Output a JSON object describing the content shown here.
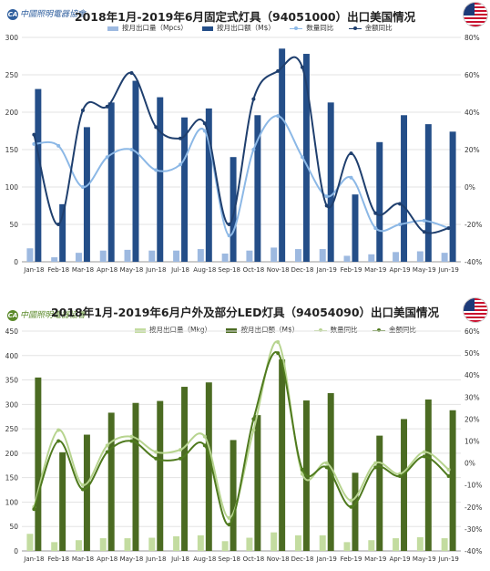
{
  "chart_data": [
    {
      "type": "bar",
      "title": "2018年1月-2019年6月固定式灯具（94051000）出口美国情况",
      "logo_text": "中國照明電器協會",
      "categories": [
        "Jan-18",
        "Feb-18",
        "Mar-18",
        "Apr-18",
        "May-18",
        "Jun-18",
        "Jul-18",
        "Aug-18",
        "Sep-18",
        "Oct-18",
        "Nov-18",
        "Dec-18",
        "Jan-19",
        "Feb-19",
        "Mar-19",
        "Apr-19",
        "May-19",
        "Jun-19"
      ],
      "y_left": {
        "min": 0,
        "max": 300,
        "ticks": [
          0,
          50,
          100,
          150,
          200,
          250,
          300
        ]
      },
      "y_right": {
        "min": -40,
        "max": 80,
        "ticks": [
          -40,
          -20,
          0,
          20,
          40,
          60,
          80
        ],
        "tick_labels": [
          "-40%",
          "-20%",
          "0%",
          "20%",
          "40%",
          "60%",
          "80%"
        ]
      },
      "series": [
        {
          "name": "按月出口量（Mpcs）",
          "type": "bar",
          "axis": "left",
          "color": "#9db9e0",
          "values": [
            18,
            6,
            12,
            15,
            16,
            15,
            15,
            17,
            11,
            15,
            19,
            17,
            17,
            8,
            10,
            13,
            14,
            12
          ]
        },
        {
          "name": "按月出口额（M$）",
          "type": "bar",
          "axis": "left",
          "color": "#244e88",
          "values": [
            231,
            77,
            180,
            213,
            242,
            220,
            193,
            205,
            140,
            196,
            285,
            278,
            213,
            90,
            160,
            196,
            184,
            174
          ]
        },
        {
          "name": "数量同比",
          "type": "line",
          "axis": "right",
          "color": "#8cb8e6",
          "values": [
            23,
            22,
            0,
            16,
            20,
            9,
            12,
            30,
            -26,
            20,
            38,
            16,
            -5,
            5,
            -22,
            -20,
            -18,
            -22
          ]
        },
        {
          "name": "金额同比",
          "type": "line",
          "axis": "right",
          "color": "#1f3f6e",
          "values": [
            28,
            -20,
            41,
            43,
            61,
            32,
            26,
            34,
            -20,
            47,
            62,
            64,
            -10,
            18,
            -14,
            -9,
            -24,
            -22
          ]
        }
      ],
      "grid": true,
      "legend_position": "top"
    },
    {
      "type": "bar",
      "title": "2018年1月-2019年6月户外及部分LED灯具（94054090）出口美国情况",
      "logo_text": "中國照明電器協會",
      "categories": [
        "Jan-18",
        "Feb-18",
        "Mar-18",
        "Apr-18",
        "May-18",
        "Jun-18",
        "Jul-18",
        "Aug-18",
        "Sep-18",
        "Oct-18",
        "Nov-18",
        "Dec-18",
        "Jan-19",
        "Feb-19",
        "Mar-19",
        "Apr-19",
        "May-19",
        "Jun-19"
      ],
      "y_left": {
        "min": 0,
        "max": 450,
        "ticks": [
          0,
          50,
          100,
          150,
          200,
          250,
          300,
          350,
          400,
          450
        ]
      },
      "y_right": {
        "min": -40,
        "max": 60,
        "ticks": [
          -40,
          -30,
          -20,
          -10,
          0,
          10,
          20,
          30,
          40,
          50,
          60
        ],
        "tick_labels": [
          "-40%",
          "-30%",
          "-20%",
          "-10%",
          "0%",
          "10%",
          "20%",
          "30%",
          "40%",
          "50%",
          "60%"
        ]
      },
      "series": [
        {
          "name": "按月出口量（Mkg）",
          "type": "bar",
          "axis": "left",
          "color": "#c3dca0",
          "values": [
            35,
            18,
            22,
            26,
            26,
            27,
            30,
            32,
            20,
            27,
            38,
            32,
            32,
            18,
            22,
            26,
            28,
            26
          ]
        },
        {
          "name": "按月出口额（M$）",
          "type": "bar",
          "axis": "left",
          "color": "#4b6b22",
          "values": [
            355,
            202,
            238,
            283,
            303,
            307,
            336,
            345,
            227,
            278,
            392,
            308,
            323,
            160,
            236,
            270,
            310,
            288
          ]
        },
        {
          "name": "数量同比",
          "type": "line",
          "axis": "right",
          "color": "#b7d48f",
          "values": [
            -20,
            15,
            -10,
            8,
            12,
            5,
            6,
            12,
            -25,
            15,
            55,
            -5,
            0,
            -17,
            0,
            -5,
            5,
            -3
          ]
        },
        {
          "name": "金额同比",
          "type": "line",
          "axis": "right",
          "color": "#4f7a1e",
          "values": [
            -21,
            10,
            -12,
            5,
            10,
            2,
            2,
            8,
            -28,
            20,
            50,
            -3,
            -2,
            -20,
            -2,
            -6,
            3,
            -6
          ]
        }
      ],
      "grid": true,
      "legend_position": "top"
    }
  ]
}
